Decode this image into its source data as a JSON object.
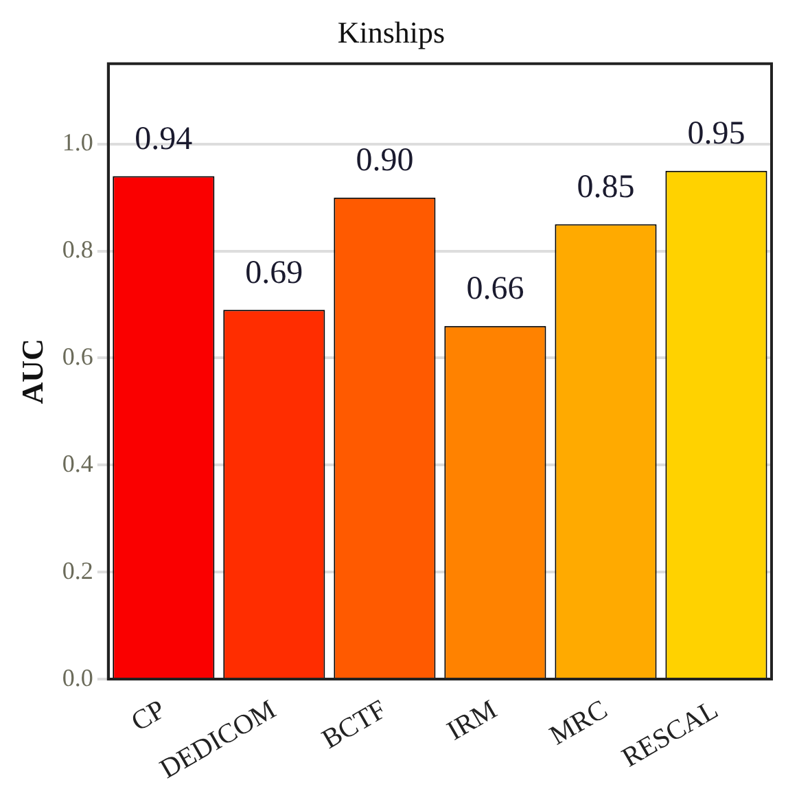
{
  "chart_data": {
    "type": "bar",
    "title": "Kinships",
    "ylabel": "AUC",
    "categories": [
      "CP",
      "DEDICOM",
      "BCTF",
      "IRM",
      "MRC",
      "RESCAL"
    ],
    "values": [
      0.94,
      0.69,
      0.9,
      0.66,
      0.85,
      0.95
    ],
    "colors": [
      "#fa0000",
      "#ff2d00",
      "#ff5a00",
      "#ff8200",
      "#ffaa00",
      "#ffd200"
    ],
    "value_labels": [
      "0.94",
      "0.69",
      "0.90",
      "0.66",
      "0.85",
      "0.95"
    ],
    "ylim": [
      0,
      1.15
    ],
    "yticks": [
      {
        "value": 0,
        "label": "0.0"
      },
      0.2,
      0.4,
      0.6,
      0.8,
      {
        "value": 1,
        "label": "1.0"
      }
    ],
    "grid": "y"
  }
}
